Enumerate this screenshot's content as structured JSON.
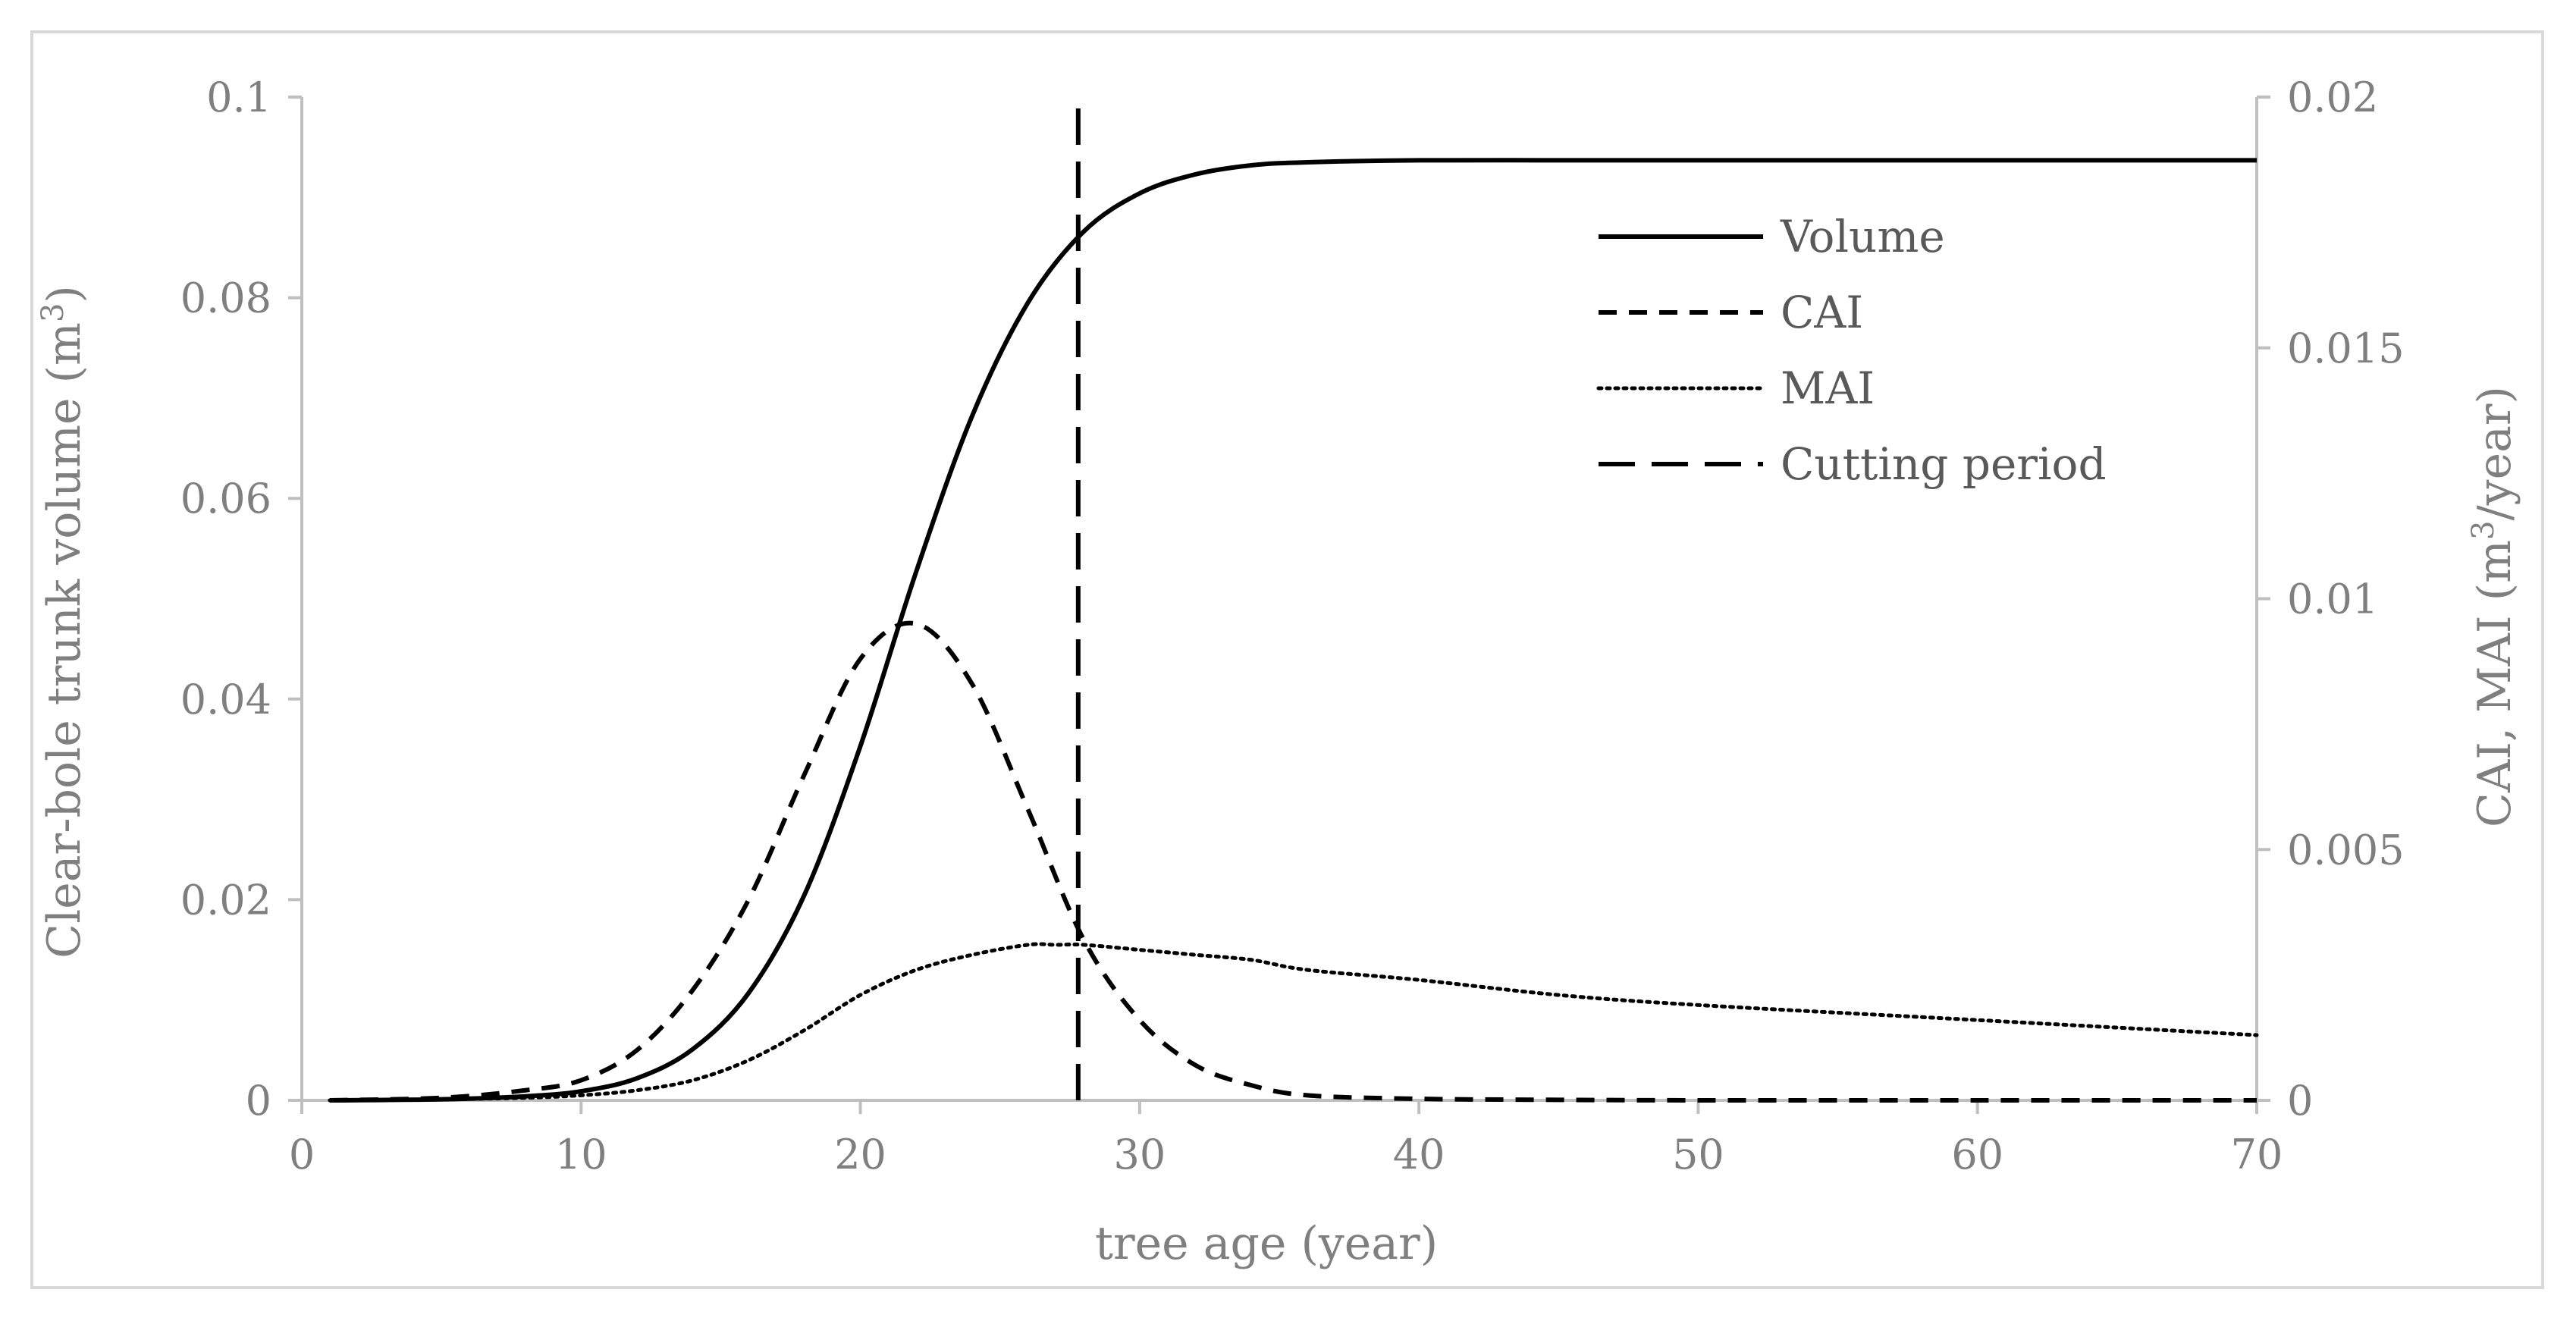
{
  "chart_data": {
    "type": "line",
    "title": "",
    "xlabel": "tree age (year)",
    "ylabel_left_main": "Clear-bole trunk volume (m",
    "ylabel_left_sup": "3",
    "ylabel_left_end": ")",
    "ylabel_right_main": "CAI, MAI (m",
    "ylabel_right_sup": "3",
    "ylabel_right_end": "/year)",
    "xlim": [
      0,
      70
    ],
    "ylim_left": [
      0,
      0.1
    ],
    "ylim_right": [
      0,
      0.02
    ],
    "x_ticks": [
      "0",
      "10",
      "20",
      "30",
      "40",
      "50",
      "60",
      "70"
    ],
    "y_left_ticks": [
      "0",
      "0.02",
      "0.04",
      "0.06",
      "0.08",
      "0.1"
    ],
    "y_right_ticks": [
      "0",
      "0.005",
      "0.01",
      "0.015",
      "0.02"
    ],
    "legend_position": "top-right",
    "series": [
      {
        "name": "Volume",
        "axis": "left",
        "style": "solid",
        "x": [
          1,
          5,
          8,
          10,
          12,
          14,
          16,
          18,
          20,
          22,
          24,
          26,
          28,
          30,
          32,
          34,
          36,
          40,
          45,
          50,
          60,
          70
        ],
        "values": [
          0,
          0.0001,
          0.0004,
          0.0009,
          0.0022,
          0.0051,
          0.0107,
          0.0205,
          0.0353,
          0.0527,
          0.0682,
          0.0795,
          0.0866,
          0.0904,
          0.0923,
          0.0932,
          0.0935,
          0.0937,
          0.0937,
          0.0937,
          0.0937,
          0.0937
        ]
      },
      {
        "name": "CAI",
        "axis": "right",
        "style": "dashed",
        "x": [
          1,
          5,
          8,
          10,
          12,
          14,
          16,
          18,
          20,
          22,
          24,
          26,
          28,
          30,
          32,
          34,
          36,
          40,
          45,
          50,
          60,
          70
        ],
        "values": [
          0,
          5e-05,
          0.0002,
          0.0004,
          0.001,
          0.0022,
          0.004,
          0.0065,
          0.0088,
          0.0095,
          0.0083,
          0.0058,
          0.0032,
          0.0016,
          0.0007,
          0.0003,
          0.0001,
          3e-05,
          1e-05,
          0,
          0,
          0
        ]
      },
      {
        "name": "MAI",
        "axis": "right",
        "style": "dotted",
        "x": [
          1,
          5,
          8,
          10,
          12,
          14,
          16,
          18,
          20,
          22,
          24,
          26,
          27,
          28,
          30,
          32,
          34,
          36,
          40,
          45,
          50,
          60,
          70
        ],
        "values": [
          0,
          2e-05,
          5e-05,
          0.0001,
          0.0002,
          0.0004,
          0.0008,
          0.0014,
          0.0021,
          0.0026,
          0.0029,
          0.0031,
          0.0031,
          0.0031,
          0.003,
          0.0029,
          0.0028,
          0.0026,
          0.0024,
          0.0021,
          0.0019,
          0.0016,
          0.0013
        ]
      },
      {
        "name": "Cutting period",
        "axis": "left",
        "style": "long-dash",
        "x": [
          27.8,
          27.8
        ],
        "values": [
          0,
          0.1
        ]
      }
    ],
    "colors": {
      "series": "#000000",
      "axis": "#bfbfbf",
      "text": "#7f7f7f",
      "legend_text": "#595959"
    }
  }
}
